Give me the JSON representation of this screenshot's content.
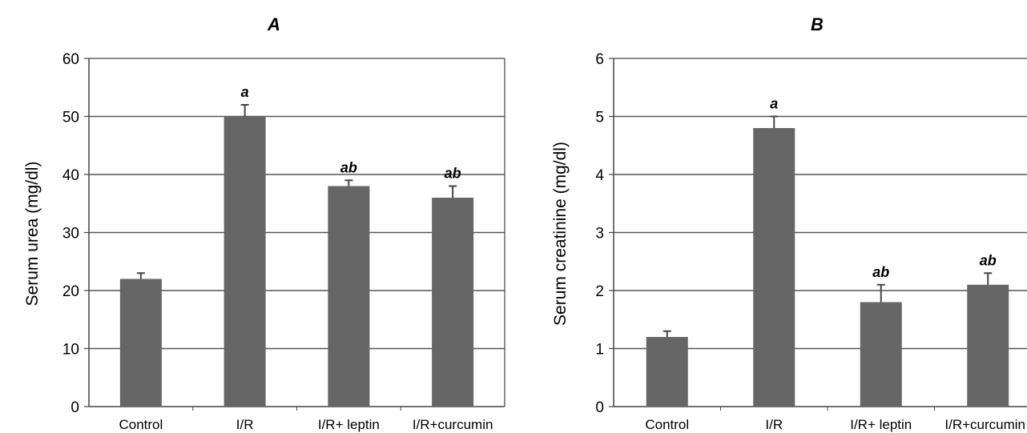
{
  "colors": {
    "bar": "#666666",
    "grid": "#555555",
    "frame": "#444444",
    "error_bar": "#444444"
  },
  "chart_data": [
    {
      "type": "bar",
      "title": "A",
      "ylabel": "Serum urea (mg/dl)",
      "xlabel": "",
      "ylim": [
        0,
        60
      ],
      "yticks": [
        0,
        10,
        20,
        30,
        40,
        50,
        60
      ],
      "grid": true,
      "categories": [
        "Control",
        "I/R",
        "I/R+ leptin",
        "I/R+curcumin"
      ],
      "values": [
        22,
        50,
        38,
        36
      ],
      "errors": [
        1,
        2,
        1,
        2
      ],
      "annotations": [
        "",
        "a",
        "ab",
        "ab"
      ]
    },
    {
      "type": "bar",
      "title": "B",
      "ylabel": "Serum creatinine (mg/dl)",
      "xlabel": "",
      "ylim": [
        0,
        6
      ],
      "yticks": [
        0,
        1,
        2,
        3,
        4,
        5,
        6
      ],
      "grid": true,
      "categories": [
        "Control",
        "I/R",
        "I/R+ leptin",
        "I/R+curcumin"
      ],
      "values": [
        1.2,
        4.8,
        1.8,
        2.1
      ],
      "errors": [
        0.1,
        0.2,
        0.3,
        0.2
      ],
      "annotations": [
        "",
        "a",
        "ab",
        "ab"
      ]
    }
  ]
}
